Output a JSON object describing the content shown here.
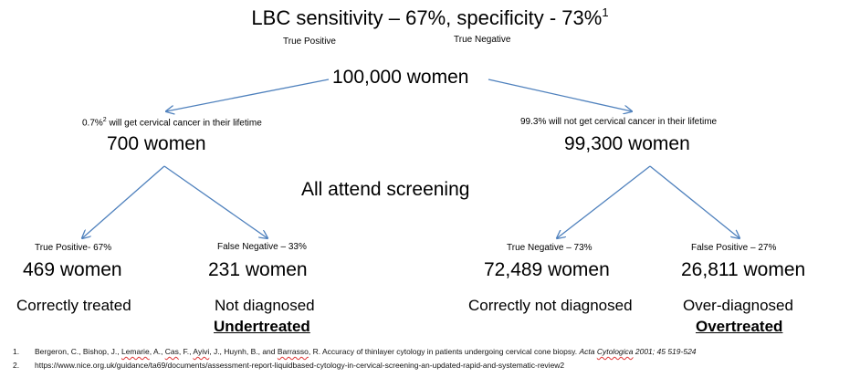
{
  "title": {
    "text": "LBC sensitivity – 67%, specificity - 73%",
    "sup": "1",
    "tp_label": "True Positive",
    "tn_label": "True Negative"
  },
  "root": {
    "label": "100,000 women"
  },
  "left_branch": {
    "note_sup": "2",
    "note_a": "0.7%",
    "note_b": " will get cervical cancer in their lifetime",
    "count": "700 women"
  },
  "right_branch": {
    "note": "99.3% will not get cervical cancer in their lifetime",
    "count": "99,300 women"
  },
  "middle": {
    "label": "All attend screening"
  },
  "leaves": {
    "tp": {
      "header": "True Positive- 67%",
      "count": "469 women",
      "outcome": "Correctly treated"
    },
    "fn": {
      "header": "False Negative – 33%",
      "count": "231 women",
      "outcome": "Not diagnosed",
      "emphasis": "Undertreated"
    },
    "tn": {
      "header": "True Negative – 73%",
      "count": "72,489 women",
      "outcome": "Correctly not diagnosed"
    },
    "fp": {
      "header": "False Positive – 27%",
      "count": "26,811 women",
      "outcome": "Over-diagnosed",
      "emphasis": "Overtreated"
    }
  },
  "references": [
    {
      "num": "1.",
      "authors_a": "Bergeron, C., Bishop, J., ",
      "authors_b": "Lemarie",
      "authors_c": ", A., ",
      "authors_d": "Cas",
      "authors_e": ", F., ",
      "authors_f": "Ayivi",
      "authors_g": ", J., Huynh, B., and ",
      "authors_h": "Barrasso",
      "authors_i": ",  R. Accuracy of thinlayer cytology in patients undergoing cervical cone biopsy. ",
      "journal_a": "Acta ",
      "journal_b": "Cytologica",
      "journal_c": " 2001; 45 519-524"
    },
    {
      "num": "2.",
      "text": "https://www.nice.org.uk/guidance/ta69/documents/assessment-report-liquidbased-cytology-in-cervical-screening-an-updated-rapid-and-systematic-review2"
    }
  ],
  "colors": {
    "arrow": "#4f81bd",
    "text": "#000000",
    "spellcheck": "#dd3333"
  }
}
